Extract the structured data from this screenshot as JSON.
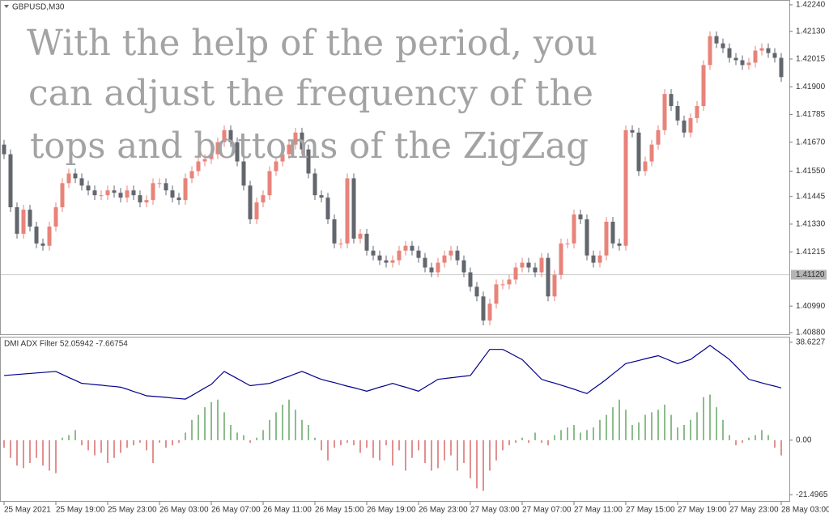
{
  "chart_data": [
    {
      "type": "candlestick",
      "title": "GBPUSD,M30",
      "annotations": [
        "With the help of the period, you",
        "can adjust the frequency of the",
        "tops and bottoms of the ZigZag"
      ],
      "categories": [
        "25 May 2021",
        null,
        null,
        null,
        null,
        null,
        null,
        null,
        "25 May 19:00",
        null,
        null,
        null,
        null,
        null,
        null,
        null,
        "25 May 23:00",
        null,
        null,
        null,
        null,
        null,
        null,
        null,
        "26 May 03:00",
        null,
        null,
        null,
        null,
        null,
        null,
        null,
        "26 May 07:00",
        null,
        null,
        null,
        null,
        null,
        null,
        null,
        "26 May 11:00",
        null,
        null,
        null,
        null,
        null,
        null,
        null,
        "26 May 15:00",
        null,
        null,
        null,
        null,
        null,
        null,
        null,
        "26 May 19:00",
        null,
        null,
        null,
        null,
        null,
        null,
        null,
        "26 May 23:00",
        null,
        null,
        null,
        null,
        null,
        null,
        null,
        "27 May 03:00",
        null,
        null,
        null,
        null,
        null,
        null,
        null,
        "27 May 07:00",
        null,
        null,
        null,
        null,
        null,
        null,
        null,
        "27 May 11:00",
        null,
        null,
        null,
        null,
        null,
        null,
        null,
        "27 May 15:00",
        null,
        null,
        null,
        null,
        null,
        null,
        null,
        "27 May 19:00",
        null,
        null,
        null,
        null,
        null,
        null,
        null,
        "27 May 23:00",
        null,
        null,
        null,
        null,
        null,
        null,
        null,
        "28 May 03:00"
      ],
      "open": [
        1.4166,
        1.4162,
        1.414,
        1.4129,
        1.4139,
        1.4132,
        1.4125,
        1.4124,
        1.4132,
        1.414,
        1.415,
        1.4154,
        1.4152,
        1.4149,
        1.4147,
        1.4145,
        1.4145,
        1.4147,
        1.4146,
        1.4144,
        1.4147,
        1.4145,
        1.4142,
        1.4143,
        1.415,
        1.415,
        1.4147,
        1.4144,
        1.4143,
        1.4152,
        1.4155,
        1.4159,
        1.416,
        1.4162,
        1.4167,
        1.4172,
        1.4167,
        1.4159,
        1.4149,
        1.4135,
        1.4142,
        1.4145,
        1.4155,
        1.4159,
        1.4162,
        1.4166,
        1.4171,
        1.4164,
        1.4154,
        1.4145,
        1.4144,
        1.4135,
        1.4125,
        1.4125,
        1.4152,
        1.4127,
        1.4129,
        1.4122,
        1.412,
        1.4118,
        1.4117,
        1.4118,
        1.4122,
        1.4124,
        1.4122,
        1.4119,
        1.4115,
        1.4113,
        1.4117,
        1.412,
        1.4122,
        1.4118,
        1.4113,
        1.4107,
        1.4103,
        1.4093,
        1.41,
        1.4108,
        1.4108,
        1.411,
        1.4115,
        1.4117,
        1.4115,
        1.4113,
        1.4119,
        1.4103,
        1.4112,
        1.4125,
        1.4125,
        1.4137,
        1.4135,
        1.412,
        1.4117,
        1.412,
        1.4134,
        1.4125,
        1.4124,
        1.4172,
        1.4171,
        1.4155,
        1.4159,
        1.4166,
        1.4172,
        1.4187,
        1.4182,
        1.4176,
        1.4171,
        1.4177,
        1.4182,
        1.4199,
        1.4211,
        1.4208,
        1.4206,
        1.4202,
        1.4201,
        1.4199,
        1.42,
        1.4205,
        1.4206,
        1.4204,
        1.4202
      ],
      "high": [
        1.4168,
        1.4164,
        1.4142,
        1.4141,
        1.4141,
        1.4134,
        1.4127,
        1.4134,
        1.4142,
        1.4152,
        1.4156,
        1.4156,
        1.4154,
        1.4151,
        1.4149,
        1.4147,
        1.4149,
        1.4149,
        1.4148,
        1.4149,
        1.4149,
        1.4147,
        1.4145,
        1.4152,
        1.4152,
        1.4152,
        1.4149,
        1.4146,
        1.4154,
        1.4157,
        1.4161,
        1.4162,
        1.4164,
        1.4169,
        1.4174,
        1.4174,
        1.4169,
        1.4161,
        1.4151,
        1.4144,
        1.4147,
        1.4157,
        1.4161,
        1.4164,
        1.4168,
        1.4173,
        1.4173,
        1.4166,
        1.4156,
        1.4147,
        1.4146,
        1.4137,
        1.4127,
        1.4154,
        1.4154,
        1.4131,
        1.4131,
        1.4124,
        1.4122,
        1.412,
        1.412,
        1.4124,
        1.4126,
        1.4126,
        1.4124,
        1.4121,
        1.4117,
        1.4119,
        1.4122,
        1.4124,
        1.4124,
        1.412,
        1.4115,
        1.4109,
        1.4105,
        1.4102,
        1.411,
        1.411,
        1.4112,
        1.4117,
        1.4119,
        1.4119,
        1.4117,
        1.4121,
        1.4121,
        1.4114,
        1.4127,
        1.4127,
        1.4139,
        1.4139,
        1.4137,
        1.4122,
        1.4122,
        1.4136,
        1.4136,
        1.4127,
        1.4174,
        1.4174,
        1.4173,
        1.4161,
        1.4168,
        1.4174,
        1.4189,
        1.4189,
        1.4184,
        1.4178,
        1.4179,
        1.4184,
        1.4201,
        1.4213,
        1.4213,
        1.421,
        1.4208,
        1.4204,
        1.4203,
        1.4202,
        1.4207,
        1.4208,
        1.4208,
        1.4206,
        1.4204
      ],
      "low": [
        1.416,
        1.4138,
        1.4127,
        1.4127,
        1.413,
        1.4123,
        1.4122,
        1.4122,
        1.413,
        1.4138,
        1.4148,
        1.415,
        1.4147,
        1.4145,
        1.4143,
        1.4143,
        1.4143,
        1.4144,
        1.4142,
        1.4142,
        1.4143,
        1.414,
        1.414,
        1.4141,
        1.4148,
        1.4145,
        1.4142,
        1.4141,
        1.4141,
        1.415,
        1.4153,
        1.4157,
        1.4158,
        1.416,
        1.4165,
        1.4165,
        1.4157,
        1.4147,
        1.4133,
        1.4133,
        1.414,
        1.4143,
        1.4153,
        1.4157,
        1.416,
        1.4164,
        1.4162,
        1.4152,
        1.4143,
        1.4142,
        1.4133,
        1.4123,
        1.4123,
        1.4123,
        1.4125,
        1.4125,
        1.412,
        1.4118,
        1.4116,
        1.4115,
        1.4115,
        1.4116,
        1.412,
        1.412,
        1.4117,
        1.4113,
        1.4111,
        1.4111,
        1.4115,
        1.4118,
        1.4116,
        1.4111,
        1.4105,
        1.4101,
        1.4091,
        1.4091,
        1.4098,
        1.4106,
        1.4106,
        1.4108,
        1.4113,
        1.4113,
        1.4111,
        1.4111,
        1.4101,
        1.4101,
        1.411,
        1.4123,
        1.4123,
        1.4133,
        1.4118,
        1.4115,
        1.4115,
        1.4118,
        1.4123,
        1.4122,
        1.4122,
        1.4169,
        1.4153,
        1.4153,
        1.4157,
        1.4164,
        1.417,
        1.418,
        1.4174,
        1.4169,
        1.4169,
        1.4175,
        1.418,
        1.4197,
        1.4206,
        1.4204,
        1.42,
        1.4199,
        1.4197,
        1.4197,
        1.4198,
        1.4203,
        1.4202,
        1.42,
        1.4192
      ],
      "close": [
        1.4162,
        1.414,
        1.4129,
        1.4139,
        1.4132,
        1.4125,
        1.4124,
        1.4132,
        1.414,
        1.415,
        1.4154,
        1.4152,
        1.4149,
        1.4147,
        1.4145,
        1.4145,
        1.4147,
        1.4146,
        1.4144,
        1.4147,
        1.4145,
        1.4142,
        1.4143,
        1.415,
        1.415,
        1.4147,
        1.4144,
        1.4143,
        1.4152,
        1.4155,
        1.4159,
        1.416,
        1.4162,
        1.4167,
        1.4172,
        1.4167,
        1.4159,
        1.4149,
        1.4135,
        1.4142,
        1.4145,
        1.4155,
        1.4159,
        1.4162,
        1.4166,
        1.4171,
        1.4164,
        1.4154,
        1.4145,
        1.4144,
        1.4135,
        1.4125,
        1.4125,
        1.4152,
        1.4127,
        1.4129,
        1.4122,
        1.412,
        1.4118,
        1.4117,
        1.4118,
        1.4122,
        1.4124,
        1.4122,
        1.4119,
        1.4115,
        1.4113,
        1.4117,
        1.412,
        1.4122,
        1.4118,
        1.4113,
        1.4107,
        1.4103,
        1.4093,
        1.41,
        1.4108,
        1.4108,
        1.411,
        1.4115,
        1.4117,
        1.4115,
        1.4113,
        1.4119,
        1.4103,
        1.4112,
        1.4125,
        1.4125,
        1.4137,
        1.4135,
        1.412,
        1.4117,
        1.412,
        1.4134,
        1.4125,
        1.4124,
        1.4172,
        1.4171,
        1.4155,
        1.4159,
        1.4166,
        1.4172,
        1.4187,
        1.4182,
        1.4176,
        1.4171,
        1.4177,
        1.4182,
        1.4199,
        1.4211,
        1.4208,
        1.4206,
        1.4202,
        1.4201,
        1.4199,
        1.42,
        1.4205,
        1.4206,
        1.4204,
        1.4202,
        1.4194
      ],
      "up_color": "#e8837a",
      "down_color": "#62666d",
      "ylim": [
        1.40873,
        1.4226
      ],
      "yticks": [
        {
          "value": 1.4224,
          "label": "1.42240"
        },
        {
          "value": 1.4213,
          "label": "1.42130"
        },
        {
          "value": 1.42015,
          "label": "1.42015"
        },
        {
          "value": 1.419,
          "label": "1.41900"
        },
        {
          "value": 1.41785,
          "label": "1.41785"
        },
        {
          "value": 1.4167,
          "label": "1.41670"
        },
        {
          "value": 1.4155,
          "label": "1.41550"
        },
        {
          "value": 1.41445,
          "label": "1.41445"
        },
        {
          "value": 1.4133,
          "label": "1.41330"
        },
        {
          "value": 1.41215,
          "label": "1.41215"
        },
        {
          "value": 1.4099,
          "label": "1.40990"
        },
        {
          "value": 1.4088,
          "label": "1.40880"
        }
      ],
      "current_price": {
        "value": 1.4112,
        "label": "1.41120"
      }
    },
    {
      "type": "combo",
      "title": "DMI ADX Filter 52.05942 -7.66754",
      "ylim": [
        -24.3,
        40.8
      ],
      "yticks": [
        38.6227,
        {
          "value": 0,
          "label": "0.00"
        },
        -21.4965
      ],
      "series": [
        {
          "type": "line",
          "color": "#00008b",
          "values": [
            25.5,
            25.7,
            25.9,
            26.1,
            26.3,
            26.5,
            26.7,
            26.9,
            27.1,
            25.9,
            24.7,
            23.6,
            22.4,
            22.2,
            21.9,
            21.7,
            21.4,
            21.2,
            20.9,
            20.1,
            19.2,
            18.4,
            17.5,
            17.3,
            17.1,
            16.9,
            16.6,
            16.4,
            16.2,
            17.6,
            19.1,
            20.6,
            22.0,
            24.6,
            27.1,
            25.7,
            24.3,
            22.9,
            21.5,
            21.8,
            22.1,
            22.4,
            23.3,
            24.3,
            25.2,
            26.2,
            27.1,
            26.1,
            25.0,
            24.0,
            23.3,
            22.7,
            22.0,
            21.3,
            20.7,
            20.0,
            19.3,
            20.1,
            20.9,
            21.6,
            22.4,
            21.6,
            20.9,
            20.1,
            19.3,
            20.9,
            22.4,
            24.0,
            24.3,
            24.6,
            24.9,
            25.2,
            25.5,
            28.9,
            32.4,
            35.8,
            35.8,
            35.8,
            34.5,
            33.1,
            31.8,
            29.2,
            26.6,
            24.0,
            23.2,
            22.5,
            21.7,
            20.9,
            20.1,
            19.2,
            18.4,
            20.3,
            22.1,
            24.0,
            26.1,
            28.1,
            30.2,
            30.8,
            31.4,
            32.1,
            32.7,
            33.3,
            32.3,
            31.2,
            30.2,
            31.0,
            31.8,
            33.7,
            35.5,
            37.4,
            35.5,
            33.7,
            31.8,
            29.2,
            26.6,
            24.0,
            23.3,
            22.6,
            21.9,
            21.3,
            20.6
          ]
        },
        {
          "type": "bar",
          "color": "#1a7a1a",
          "negative_color": "#c62020",
          "values": [
            -3,
            -7,
            -10,
            -11,
            -9,
            -7,
            -10,
            -12,
            -13,
            1,
            2,
            4,
            -2,
            -4,
            -6,
            -5,
            -9,
            -7,
            -5,
            -3,
            -2,
            -1,
            -4,
            -9,
            -1,
            -3,
            -2,
            -1,
            3,
            8,
            10,
            13,
            15,
            16,
            11,
            6,
            3,
            2,
            -1,
            1,
            4,
            8,
            11,
            14,
            16,
            12,
            8,
            6,
            1,
            -4,
            -8,
            -3,
            -2,
            -1,
            -2,
            -5,
            -3,
            -7,
            -8,
            -2,
            -10,
            -4,
            -12,
            -7,
            -4,
            -9,
            -12,
            -11,
            -8,
            -6,
            -12,
            -9,
            -15,
            -19,
            -20,
            -12,
            -8,
            -4,
            -2,
            -1,
            1,
            -1,
            3,
            -1,
            -2,
            2,
            4,
            5,
            6,
            3,
            4,
            5,
            8,
            10,
            13,
            16,
            12,
            6,
            7,
            10,
            11,
            12,
            14,
            10,
            5,
            6,
            8,
            11,
            17,
            18,
            13,
            8,
            2,
            -2,
            -1,
            1,
            2,
            4,
            2,
            -3,
            -6
          ]
        }
      ]
    }
  ]
}
